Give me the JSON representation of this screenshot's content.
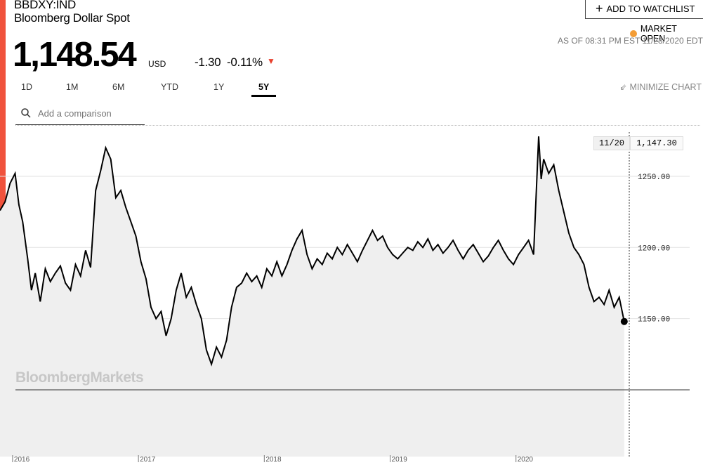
{
  "header": {
    "ticker": "BBDXY:IND",
    "name": "Bloomberg Dollar Spot",
    "price": "1,148.54",
    "currency": "USD",
    "change": "-1.30",
    "change_pct": "-0.11%",
    "watchlist_label": "ADD TO WATCHLIST",
    "market_status": "MARKET OPEN",
    "as_of": "AS OF 08:31 PM EST 11/23/2020 EDT"
  },
  "tabs": [
    {
      "label": "1D",
      "active": false
    },
    {
      "label": "1M",
      "active": false
    },
    {
      "label": "6M",
      "active": false
    },
    {
      "label": "YTD",
      "active": false
    },
    {
      "label": "1Y",
      "active": false
    },
    {
      "label": "5Y",
      "active": true
    }
  ],
  "minimize_label": "MINIMIZE CHART",
  "compare": {
    "placeholder": "Add a comparison"
  },
  "tooltip": {
    "date": "11/20",
    "value": "1,147.30"
  },
  "watermark": "BloombergMarkets",
  "colors": {
    "accent": "#f0523c",
    "status_dot": "#f39c35",
    "down": "#e8402d"
  },
  "chart_data": {
    "type": "line",
    "x_label_ticks": [
      "2016",
      "2017",
      "2018",
      "2019",
      "2020"
    ],
    "y_tick_labels": [
      "1250.00",
      "1200.00",
      "1150.00"
    ],
    "y_ticks": [
      1250,
      1200,
      1150
    ],
    "ylim": [
      1100,
      1285
    ],
    "xlim": [
      2015.9,
      2020.9
    ],
    "series": [
      {
        "points": [
          [
            2015.9,
            1226
          ],
          [
            2015.94,
            1232
          ],
          [
            2015.98,
            1245
          ],
          [
            2016.02,
            1252
          ],
          [
            2016.05,
            1230
          ],
          [
            2016.08,
            1218
          ],
          [
            2016.12,
            1192
          ],
          [
            2016.15,
            1170
          ],
          [
            2016.18,
            1182
          ],
          [
            2016.22,
            1162
          ],
          [
            2016.26,
            1185
          ],
          [
            2016.3,
            1176
          ],
          [
            2016.34,
            1182
          ],
          [
            2016.38,
            1187
          ],
          [
            2016.42,
            1175
          ],
          [
            2016.46,
            1170
          ],
          [
            2016.5,
            1188
          ],
          [
            2016.54,
            1180
          ],
          [
            2016.58,
            1198
          ],
          [
            2016.62,
            1186
          ],
          [
            2016.66,
            1240
          ],
          [
            2016.7,
            1254
          ],
          [
            2016.74,
            1270
          ],
          [
            2016.78,
            1262
          ],
          [
            2016.82,
            1235
          ],
          [
            2016.86,
            1240
          ],
          [
            2016.9,
            1228
          ],
          [
            2016.94,
            1218
          ],
          [
            2016.98,
            1208
          ],
          [
            2017.02,
            1190
          ],
          [
            2017.06,
            1178
          ],
          [
            2017.1,
            1158
          ],
          [
            2017.14,
            1150
          ],
          [
            2017.18,
            1155
          ],
          [
            2017.22,
            1138
          ],
          [
            2017.26,
            1150
          ],
          [
            2017.3,
            1170
          ],
          [
            2017.34,
            1182
          ],
          [
            2017.38,
            1165
          ],
          [
            2017.42,
            1172
          ],
          [
            2017.46,
            1160
          ],
          [
            2017.5,
            1150
          ],
          [
            2017.54,
            1128
          ],
          [
            2017.58,
            1118
          ],
          [
            2017.62,
            1130
          ],
          [
            2017.66,
            1123
          ],
          [
            2017.7,
            1135
          ],
          [
            2017.74,
            1158
          ],
          [
            2017.78,
            1172
          ],
          [
            2017.82,
            1175
          ],
          [
            2017.86,
            1182
          ],
          [
            2017.9,
            1176
          ],
          [
            2017.94,
            1180
          ],
          [
            2017.98,
            1172
          ],
          [
            2018.02,
            1185
          ],
          [
            2018.06,
            1180
          ],
          [
            2018.1,
            1190
          ],
          [
            2018.14,
            1180
          ],
          [
            2018.18,
            1188
          ],
          [
            2018.22,
            1198
          ],
          [
            2018.26,
            1206
          ],
          [
            2018.3,
            1212
          ],
          [
            2018.34,
            1195
          ],
          [
            2018.38,
            1185
          ],
          [
            2018.42,
            1192
          ],
          [
            2018.46,
            1188
          ],
          [
            2018.5,
            1196
          ],
          [
            2018.54,
            1192
          ],
          [
            2018.58,
            1200
          ],
          [
            2018.62,
            1195
          ],
          [
            2018.66,
            1202
          ],
          [
            2018.7,
            1196
          ],
          [
            2018.74,
            1190
          ],
          [
            2018.78,
            1198
          ],
          [
            2018.82,
            1205
          ],
          [
            2018.86,
            1212
          ],
          [
            2018.9,
            1205
          ],
          [
            2018.94,
            1208
          ],
          [
            2018.98,
            1200
          ],
          [
            2019.02,
            1195
          ],
          [
            2019.06,
            1192
          ],
          [
            2019.1,
            1196
          ],
          [
            2019.14,
            1200
          ],
          [
            2019.18,
            1198
          ],
          [
            2019.22,
            1204
          ],
          [
            2019.26,
            1200
          ],
          [
            2019.3,
            1206
          ],
          [
            2019.34,
            1198
          ],
          [
            2019.38,
            1202
          ],
          [
            2019.42,
            1196
          ],
          [
            2019.46,
            1200
          ],
          [
            2019.5,
            1205
          ],
          [
            2019.54,
            1198
          ],
          [
            2019.58,
            1192
          ],
          [
            2019.62,
            1198
          ],
          [
            2019.66,
            1202
          ],
          [
            2019.7,
            1196
          ],
          [
            2019.74,
            1190
          ],
          [
            2019.78,
            1194
          ],
          [
            2019.82,
            1200
          ],
          [
            2019.86,
            1205
          ],
          [
            2019.9,
            1198
          ],
          [
            2019.94,
            1192
          ],
          [
            2019.98,
            1188
          ],
          [
            2020.02,
            1195
          ],
          [
            2020.06,
            1200
          ],
          [
            2020.1,
            1205
          ],
          [
            2020.14,
            1195
          ],
          [
            2020.18,
            1278
          ],
          [
            2020.2,
            1248
          ],
          [
            2020.22,
            1262
          ],
          [
            2020.26,
            1252
          ],
          [
            2020.3,
            1258
          ],
          [
            2020.34,
            1240
          ],
          [
            2020.38,
            1225
          ],
          [
            2020.42,
            1210
          ],
          [
            2020.46,
            1200
          ],
          [
            2020.5,
            1195
          ],
          [
            2020.54,
            1188
          ],
          [
            2020.58,
            1172
          ],
          [
            2020.62,
            1162
          ],
          [
            2020.66,
            1165
          ],
          [
            2020.7,
            1160
          ],
          [
            2020.74,
            1170
          ],
          [
            2020.78,
            1158
          ],
          [
            2020.82,
            1165
          ],
          [
            2020.86,
            1148
          ]
        ]
      }
    ]
  }
}
